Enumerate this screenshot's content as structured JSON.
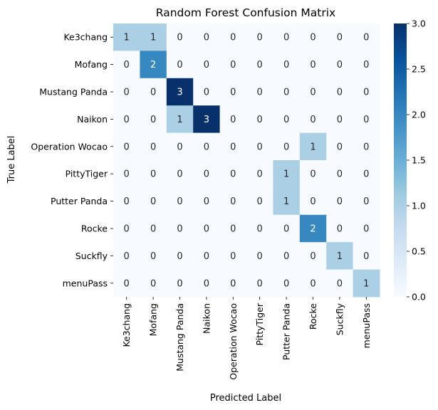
{
  "chart_data": {
    "type": "heatmap",
    "title": "Random Forest Confusion Matrix",
    "xlabel": "Predicted Label",
    "ylabel": "True Label",
    "x_categories": [
      "Ke3chang",
      "Mofang",
      "Mustang Panda",
      "Naikon",
      "Operation Wocao",
      "PittyTiger",
      "Putter Panda",
      "Rocke",
      "Suckfly",
      "menuPass"
    ],
    "y_categories": [
      "Ke3chang",
      "Mofang",
      "Mustang Panda",
      "Naikon",
      "Operation Wocao",
      "PittyTiger",
      "Putter Panda",
      "Rocke",
      "Suckfly",
      "menuPass"
    ],
    "values": [
      [
        1,
        1,
        0,
        0,
        0,
        0,
        0,
        0,
        0,
        0
      ],
      [
        0,
        2,
        0,
        0,
        0,
        0,
        0,
        0,
        0,
        0
      ],
      [
        0,
        0,
        3,
        0,
        0,
        0,
        0,
        0,
        0,
        0
      ],
      [
        0,
        0,
        1,
        3,
        0,
        0,
        0,
        0,
        0,
        0
      ],
      [
        0,
        0,
        0,
        0,
        0,
        0,
        0,
        1,
        0,
        0
      ],
      [
        0,
        0,
        0,
        0,
        0,
        0,
        1,
        0,
        0,
        0
      ],
      [
        0,
        0,
        0,
        0,
        0,
        0,
        1,
        0,
        0,
        0
      ],
      [
        0,
        0,
        0,
        0,
        0,
        0,
        0,
        2,
        0,
        0
      ],
      [
        0,
        0,
        0,
        0,
        0,
        0,
        0,
        0,
        1,
        0
      ],
      [
        0,
        0,
        0,
        0,
        0,
        0,
        0,
        0,
        0,
        1
      ]
    ],
    "colormap": "Blues",
    "vmin": 0,
    "vmax": 3,
    "colorbar_ticks": [
      "0.0",
      "0.5",
      "1.0",
      "1.5",
      "2.0",
      "2.5",
      "3.0"
    ],
    "colors": {
      "low": "#f7fbff",
      "level_1": "#a6cee4",
      "level_2": "#2e7ebc",
      "high": "#08306b"
    }
  }
}
